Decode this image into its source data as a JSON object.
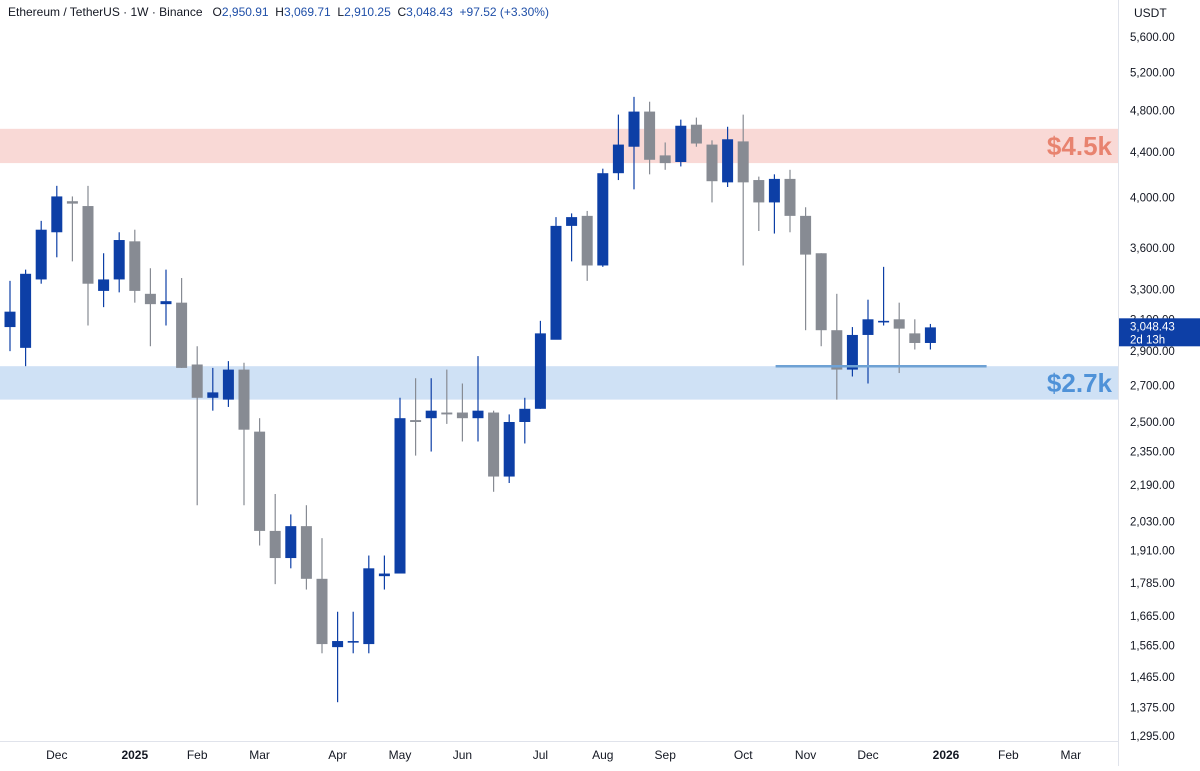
{
  "header": {
    "symbol": "Ethereum / TetherUS · 1W · Binance",
    "open_label": "O",
    "open": "2,950.91",
    "high_label": "H",
    "high": "3,069.71",
    "low_label": "L",
    "low": "2,910.25",
    "close_label": "C",
    "close": "3,048.43",
    "change": "+97.52 (+3.30%)"
  },
  "price_axis": {
    "currency": "USDT",
    "current_price": "3,048.43",
    "countdown": "2d 13h"
  },
  "colors": {
    "up": "#0d3fa6",
    "down": "#878b93",
    "resistance_zone": "#f9d9d6",
    "resistance_label": "#e8836f",
    "support_zone": "#cfe1f5",
    "support_label": "#4f92d8",
    "support_line": "#6ea1d4"
  },
  "chart_data": {
    "type": "candlestick",
    "title": "Ethereum / TetherUS · 1W · Binance",
    "scale": "log",
    "ylim": [
      1295,
      5600
    ],
    "y_ticks": [
      {
        "v": 5600,
        "t": "5,600.00"
      },
      {
        "v": 5200,
        "t": "5,200.00"
      },
      {
        "v": 4800,
        "t": "4,800.00"
      },
      {
        "v": 4400,
        "t": "4,400.00"
      },
      {
        "v": 4000,
        "t": "4,000.00"
      },
      {
        "v": 3600,
        "t": "3,600.00"
      },
      {
        "v": 3300,
        "t": "3,300.00"
      },
      {
        "v": 3100,
        "t": "3,100.00"
      },
      {
        "v": 2900,
        "t": "2,900.00"
      },
      {
        "v": 2700,
        "t": "2,700.00"
      },
      {
        "v": 2500,
        "t": "2,500.00"
      },
      {
        "v": 2350,
        "t": "2,350.00"
      },
      {
        "v": 2190,
        "t": "2,190.00"
      },
      {
        "v": 2030,
        "t": "2,030.00"
      },
      {
        "v": 1910,
        "t": "1,910.00"
      },
      {
        "v": 1785,
        "t": "1,785.00"
      },
      {
        "v": 1665,
        "t": "1,665.00"
      },
      {
        "v": 1565,
        "t": "1,565.00"
      },
      {
        "v": 1465,
        "t": "1,465.00"
      },
      {
        "v": 1375,
        "t": "1,375.00"
      },
      {
        "v": 1295,
        "t": "1,295.00"
      }
    ],
    "x_ticks": [
      {
        "i": 3,
        "t": "Dec",
        "bold": false
      },
      {
        "i": 8,
        "t": "2025",
        "bold": true
      },
      {
        "i": 12,
        "t": "Feb",
        "bold": false
      },
      {
        "i": 16,
        "t": "Mar",
        "bold": false
      },
      {
        "i": 21,
        "t": "Apr",
        "bold": false
      },
      {
        "i": 25,
        "t": "May",
        "bold": false
      },
      {
        "i": 29,
        "t": "Jun",
        "bold": false
      },
      {
        "i": 34,
        "t": "Jul",
        "bold": false
      },
      {
        "i": 38,
        "t": "Aug",
        "bold": false
      },
      {
        "i": 42,
        "t": "Sep",
        "bold": false
      },
      {
        "i": 47,
        "t": "Oct",
        "bold": false
      },
      {
        "i": 51,
        "t": "Nov",
        "bold": false
      },
      {
        "i": 55,
        "t": "Dec",
        "bold": false
      },
      {
        "i": 60,
        "t": "2026",
        "bold": true
      },
      {
        "i": 64,
        "t": "Feb",
        "bold": false
      },
      {
        "i": 68,
        "t": "Mar",
        "bold": false
      }
    ],
    "zones": [
      {
        "label": "$4.5k",
        "low": 4300,
        "high": 4620,
        "kind": "resistance"
      },
      {
        "label": "$2.7k",
        "low": 2620,
        "high": 2810,
        "kind": "support"
      }
    ],
    "support_line": {
      "price": 2810,
      "from_index": 51,
      "to_index": 61
    },
    "current_price": 3048.43,
    "candles": [
      {
        "o": 3050,
        "h": 3360,
        "l": 2900,
        "c": 3150
      },
      {
        "o": 2920,
        "h": 3440,
        "l": 2810,
        "c": 3410
      },
      {
        "o": 3370,
        "h": 3810,
        "l": 3340,
        "c": 3740
      },
      {
        "o": 3720,
        "h": 4100,
        "l": 3530,
        "c": 4010
      },
      {
        "o": 3970,
        "h": 4010,
        "l": 3500,
        "c": 3950
      },
      {
        "o": 3930,
        "h": 4100,
        "l": 3060,
        "c": 3340
      },
      {
        "o": 3290,
        "h": 3560,
        "l": 3180,
        "c": 3370
      },
      {
        "o": 3370,
        "h": 3720,
        "l": 3280,
        "c": 3660
      },
      {
        "o": 3650,
        "h": 3740,
        "l": 3210,
        "c": 3290
      },
      {
        "o": 3270,
        "h": 3450,
        "l": 2930,
        "c": 3200
      },
      {
        "o": 3200,
        "h": 3440,
        "l": 3060,
        "c": 3220
      },
      {
        "o": 3210,
        "h": 3380,
        "l": 2800,
        "c": 2800
      },
      {
        "o": 2820,
        "h": 2930,
        "l": 2100,
        "c": 2630
      },
      {
        "o": 2630,
        "h": 2800,
        "l": 2560,
        "c": 2660
      },
      {
        "o": 2620,
        "h": 2840,
        "l": 2580,
        "c": 2790
      },
      {
        "o": 2790,
        "h": 2830,
        "l": 2100,
        "c": 2460
      },
      {
        "o": 2450,
        "h": 2520,
        "l": 1930,
        "c": 1990
      },
      {
        "o": 1990,
        "h": 2150,
        "l": 1780,
        "c": 1880
      },
      {
        "o": 1880,
        "h": 2060,
        "l": 1840,
        "c": 2010
      },
      {
        "o": 2010,
        "h": 2100,
        "l": 1760,
        "c": 1800
      },
      {
        "o": 1800,
        "h": 1960,
        "l": 1540,
        "c": 1570
      },
      {
        "o": 1560,
        "h": 1680,
        "l": 1390,
        "c": 1580
      },
      {
        "o": 1580,
        "h": 1680,
        "l": 1540,
        "c": 1580
      },
      {
        "o": 1570,
        "h": 1890,
        "l": 1540,
        "c": 1840
      },
      {
        "o": 1810,
        "h": 1890,
        "l": 1760,
        "c": 1820
      },
      {
        "o": 1820,
        "h": 2630,
        "l": 1820,
        "c": 2520
      },
      {
        "o": 2510,
        "h": 2740,
        "l": 2330,
        "c": 2500
      },
      {
        "o": 2520,
        "h": 2740,
        "l": 2350,
        "c": 2560
      },
      {
        "o": 2550,
        "h": 2790,
        "l": 2490,
        "c": 2540
      },
      {
        "o": 2550,
        "h": 2710,
        "l": 2400,
        "c": 2520
      },
      {
        "o": 2520,
        "h": 2870,
        "l": 2400,
        "c": 2560
      },
      {
        "o": 2550,
        "h": 2560,
        "l": 2160,
        "c": 2230
      },
      {
        "o": 2230,
        "h": 2540,
        "l": 2200,
        "c": 2500
      },
      {
        "o": 2500,
        "h": 2630,
        "l": 2390,
        "c": 2570
      },
      {
        "o": 2570,
        "h": 3090,
        "l": 2570,
        "c": 3010
      },
      {
        "o": 2970,
        "h": 3840,
        "l": 2980,
        "c": 3770
      },
      {
        "o": 3770,
        "h": 3870,
        "l": 3500,
        "c": 3840
      },
      {
        "o": 3850,
        "h": 3890,
        "l": 3360,
        "c": 3470
      },
      {
        "o": 3470,
        "h": 4250,
        "l": 3460,
        "c": 4210
      },
      {
        "o": 4210,
        "h": 4760,
        "l": 4150,
        "c": 4470
      },
      {
        "o": 4450,
        "h": 4940,
        "l": 4070,
        "c": 4790
      },
      {
        "o": 4790,
        "h": 4890,
        "l": 4200,
        "c": 4330
      },
      {
        "o": 4370,
        "h": 4490,
        "l": 4240,
        "c": 4300
      },
      {
        "o": 4310,
        "h": 4710,
        "l": 4270,
        "c": 4650
      },
      {
        "o": 4660,
        "h": 4730,
        "l": 4450,
        "c": 4480
      },
      {
        "o": 4470,
        "h": 4510,
        "l": 3960,
        "c": 4140
      },
      {
        "o": 4130,
        "h": 4640,
        "l": 4090,
        "c": 4520
      },
      {
        "o": 4500,
        "h": 4760,
        "l": 3470,
        "c": 4130
      },
      {
        "o": 4150,
        "h": 4180,
        "l": 3730,
        "c": 3960
      },
      {
        "o": 3960,
        "h": 4200,
        "l": 3710,
        "c": 4160
      },
      {
        "o": 4160,
        "h": 4240,
        "l": 3720,
        "c": 3850
      },
      {
        "o": 3850,
        "h": 3920,
        "l": 3030,
        "c": 3550
      },
      {
        "o": 3560,
        "h": 3560,
        "l": 2930,
        "c": 3030
      },
      {
        "o": 3030,
        "h": 3270,
        "l": 2620,
        "c": 2790
      },
      {
        "o": 2790,
        "h": 3050,
        "l": 2750,
        "c": 3000
      },
      {
        "o": 3000,
        "h": 3230,
        "l": 2710,
        "c": 3100
      },
      {
        "o": 3080,
        "h": 3460,
        "l": 3060,
        "c": 3090
      },
      {
        "o": 3100,
        "h": 3210,
        "l": 2770,
        "c": 3040
      },
      {
        "o": 3010,
        "h": 3100,
        "l": 2910,
        "c": 2950
      },
      {
        "o": 2950,
        "h": 3070,
        "l": 2910,
        "c": 3048
      }
    ]
  }
}
